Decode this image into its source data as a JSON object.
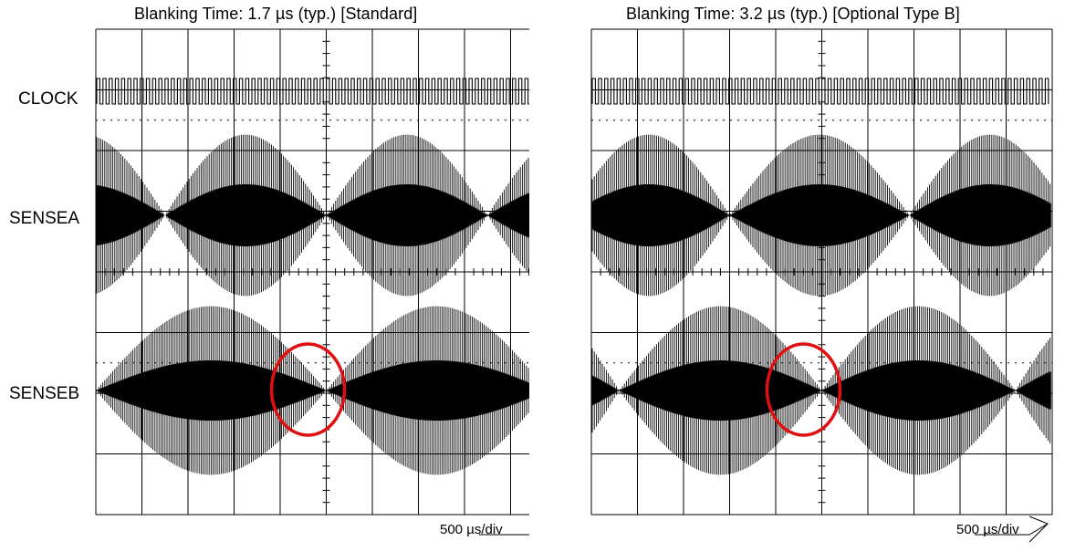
{
  "chart_data": [
    {
      "type": "line",
      "title": "Blanking Time: 1.7 µs (typ.) [Standard]",
      "channels": [
        "CLOCK",
        "SENSEA",
        "SENSEB"
      ],
      "timebase": "500 µs/div",
      "divisions": {
        "x": 10,
        "y": 8
      },
      "grid": true,
      "highlight": {
        "shape": "ellipse",
        "color": "#e01010",
        "channel": "SENSEB",
        "time_div": 5.0
      },
      "series": [
        {
          "channel": "CLOCK",
          "waveform": "square pulse train"
        },
        {
          "channel": "SENSEA",
          "nulls_div": [
            1.5,
            5.0,
            8.5
          ],
          "peak_div": 1.3
        },
        {
          "channel": "SENSEB",
          "nulls_div": [
            0.0,
            5.0,
            9.8
          ],
          "peak_div": 1.4
        }
      ]
    },
    {
      "type": "line",
      "title": "Blanking Time: 3.2 µs (typ.) [Optional Type B]",
      "channels": [
        "CLOCK",
        "SENSEA",
        "SENSEB"
      ],
      "timebase": "500 µs/div",
      "divisions": {
        "x": 10,
        "y": 8
      },
      "grid": true,
      "highlight": {
        "shape": "ellipse",
        "color": "#e01010",
        "channel": "SENSEB",
        "time_div": 5.0
      },
      "series": [
        {
          "channel": "CLOCK",
          "waveform": "square pulse train"
        },
        {
          "channel": "SENSEA",
          "nulls_div": [
            3.0,
            6.9
          ],
          "peak_div": 1.3
        },
        {
          "channel": "SENSEB",
          "nulls_div": [
            0.6,
            5.0,
            9.2
          ],
          "peak_div": 1.4
        }
      ]
    }
  ]
}
